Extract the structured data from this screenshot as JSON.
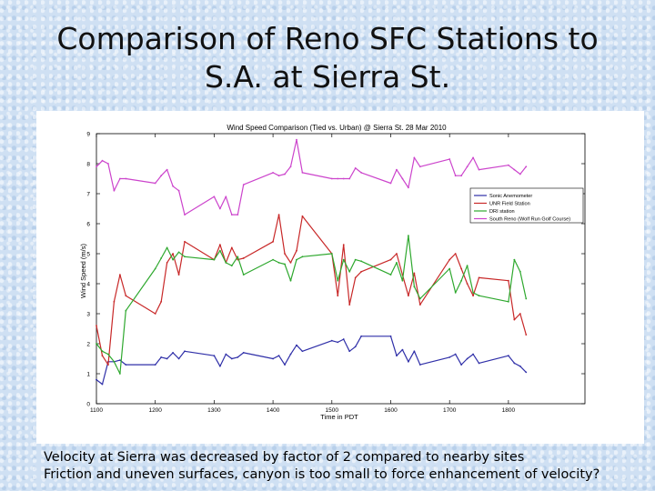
{
  "slide": {
    "title_line1": "Comparison of Reno SFC Stations to",
    "title_line2": "S.A. at Sierra St.",
    "caption_line1": "Velocity at Sierra was decreased by factor of 2 compared to nearby sites",
    "caption_line2": "Friction and uneven surfaces, canyon is too small to force enhancement of velocity?"
  },
  "chart_data": {
    "type": "line",
    "title": "Wind Speed Comparison (Tied vs. Urban) @ Sierra St. 28 Mar 2010",
    "xlabel": "Time in PDT",
    "ylabel": "Wind Speed (m/s)",
    "xlim": [
      1100,
      1930
    ],
    "ylim": [
      0,
      9
    ],
    "x_ticks": [
      1100,
      1200,
      1300,
      1400,
      1500,
      1600,
      1700,
      1800
    ],
    "x_tick_labels": [
      "1100",
      "1200",
      "1300",
      "1400",
      "1500",
      "1600",
      "1700",
      "1800"
    ],
    "y_ticks": [
      0,
      1,
      2,
      3,
      4,
      5,
      6,
      7,
      8,
      9
    ],
    "grid": false,
    "legend_position": "right",
    "x": [
      1100,
      1110,
      1120,
      1130,
      1140,
      1150,
      1200,
      1210,
      1220,
      1230,
      1240,
      1250,
      1300,
      1310,
      1320,
      1330,
      1340,
      1350,
      1400,
      1410,
      1420,
      1430,
      1440,
      1450,
      1500,
      1510,
      1520,
      1530,
      1540,
      1550,
      1600,
      1610,
      1620,
      1630,
      1640,
      1650,
      1700,
      1710,
      1720,
      1730,
      1740,
      1750,
      1800,
      1810,
      1820,
      1830
    ],
    "series": [
      {
        "name": "Sonic Anemometer",
        "color": "#2f2fa8",
        "values": [
          0.8,
          0.65,
          1.4,
          1.4,
          1.45,
          1.3,
          1.3,
          1.55,
          1.5,
          1.7,
          1.5,
          1.75,
          1.6,
          1.25,
          1.65,
          1.5,
          1.55,
          1.7,
          1.5,
          1.6,
          1.3,
          1.65,
          1.95,
          1.75,
          2.1,
          2.05,
          2.15,
          1.75,
          1.9,
          2.25,
          2.25,
          1.6,
          1.8,
          1.4,
          1.75,
          1.3,
          1.55,
          1.65,
          1.3,
          1.5,
          1.65,
          1.35,
          1.6,
          1.35,
          1.25,
          1.05
        ]
      },
      {
        "name": "UNR Field Station",
        "color": "#c82828",
        "values": [
          2.6,
          1.6,
          1.3,
          3.4,
          4.3,
          3.6,
          3.0,
          3.4,
          4.7,
          5.0,
          4.3,
          5.4,
          4.8,
          5.3,
          4.7,
          5.2,
          4.8,
          4.85,
          5.4,
          6.3,
          5.0,
          4.7,
          5.1,
          6.25,
          5.0,
          3.6,
          5.3,
          3.3,
          4.2,
          4.4,
          4.8,
          5.0,
          4.3,
          3.6,
          4.35,
          3.3,
          4.8,
          5.0,
          4.5,
          4.0,
          3.6,
          4.2,
          4.1,
          2.8,
          3.0,
          2.3
        ]
      },
      {
        "name": "DRI station",
        "color": "#2ea82e",
        "values": [
          2.0,
          1.75,
          1.65,
          1.4,
          1.0,
          3.1,
          4.5,
          4.85,
          5.2,
          4.8,
          5.05,
          4.9,
          4.8,
          5.1,
          4.7,
          4.6,
          4.9,
          4.3,
          4.8,
          4.7,
          4.65,
          4.1,
          4.8,
          4.9,
          5.0,
          4.1,
          4.8,
          4.4,
          4.8,
          4.75,
          4.3,
          4.7,
          4.1,
          5.6,
          3.9,
          3.5,
          4.5,
          3.7,
          4.1,
          4.6,
          3.7,
          3.6,
          3.4,
          4.8,
          4.4,
          3.5
        ]
      },
      {
        "name": "South Reno (Wolf Run Golf Course)",
        "color": "#cc44cc",
        "values": [
          7.9,
          8.1,
          8.0,
          7.1,
          7.5,
          7.5,
          7.35,
          7.6,
          7.8,
          7.25,
          7.1,
          6.3,
          6.9,
          6.5,
          6.9,
          6.3,
          6.3,
          7.3,
          7.7,
          7.6,
          7.65,
          7.9,
          8.8,
          7.7,
          7.5,
          7.5,
          7.5,
          7.5,
          7.85,
          7.7,
          7.35,
          7.8,
          7.5,
          7.2,
          8.2,
          7.9,
          8.15,
          7.6,
          7.6,
          7.9,
          8.2,
          7.8,
          7.95,
          7.8,
          7.65,
          7.9
        ]
      }
    ]
  }
}
